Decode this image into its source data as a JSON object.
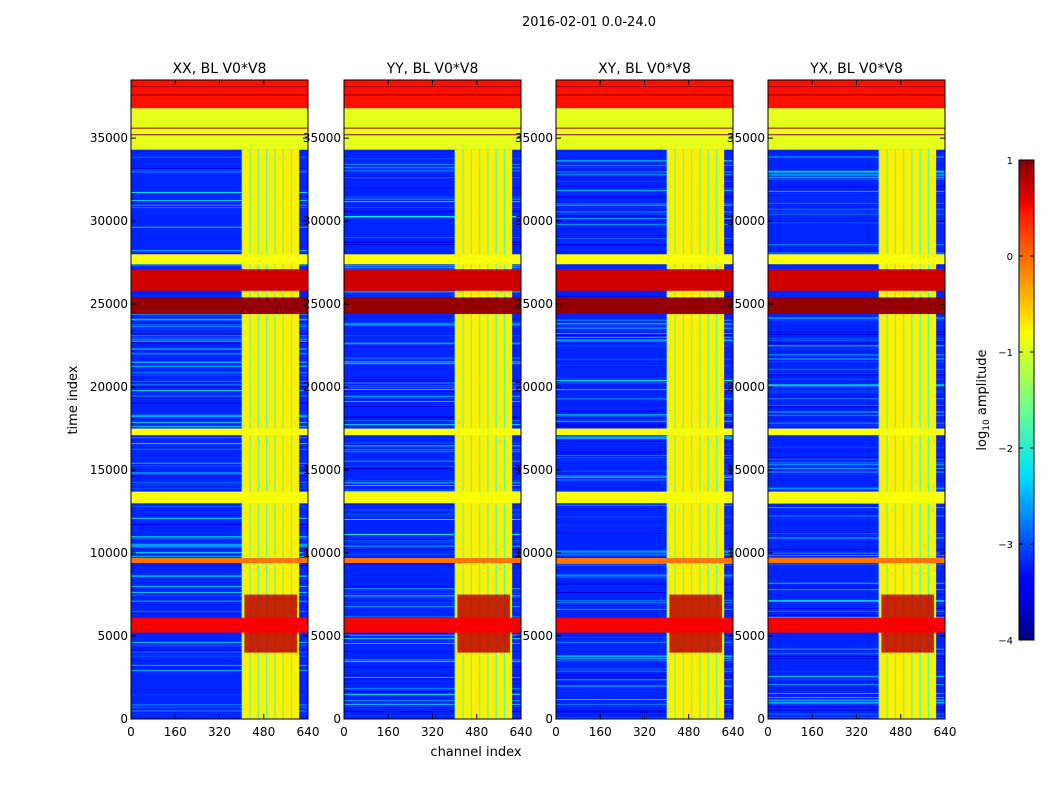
{
  "figure_title": "2016-02-01 0.0-24.0",
  "xlabel": "channel index",
  "ylabel": "time index",
  "colorbar": {
    "label_prefix": "log",
    "label_subscript": "10",
    "label_suffix": " amplitude",
    "ticks": [
      1,
      0,
      -1,
      -2,
      -3,
      -4
    ],
    "tick_labels": [
      "1",
      "0",
      "−1",
      "−2",
      "−3",
      "−4"
    ],
    "range": [
      -4,
      1
    ],
    "colormap": "jet"
  },
  "chart_data": [
    {
      "type": "heatmap",
      "title": "XX, BL V0*V8",
      "xlim": [
        0,
        640
      ],
      "ylim": [
        0,
        38500
      ],
      "xticks": [
        0,
        160,
        320,
        480,
        640
      ],
      "yticks": [
        0,
        5000,
        10000,
        15000,
        20000,
        25000,
        30000,
        35000
      ],
      "signal_band_channels": [
        400,
        600
      ]
    },
    {
      "type": "heatmap",
      "title": "YY, BL V0*V8",
      "xlim": [
        0,
        640
      ],
      "ylim": [
        0,
        38500
      ],
      "xticks": [
        0,
        160,
        320,
        480,
        640
      ],
      "yticks": [
        0,
        5000,
        10000,
        15000,
        20000,
        25000,
        30000,
        35000
      ],
      "signal_band_channels": [
        400,
        600
      ]
    },
    {
      "type": "heatmap",
      "title": "XY, BL V0*V8",
      "xlim": [
        0,
        640
      ],
      "ylim": [
        0,
        38500
      ],
      "xticks": [
        0,
        160,
        320,
        480,
        640
      ],
      "yticks": [
        0,
        5000,
        10000,
        15000,
        20000,
        25000,
        30000,
        35000
      ],
      "signal_band_channels": [
        400,
        600
      ]
    },
    {
      "type": "heatmap",
      "title": "YX, BL V0*V8",
      "xlim": [
        0,
        640
      ],
      "ylim": [
        0,
        38500
      ],
      "xticks": [
        0,
        160,
        320,
        480,
        640
      ],
      "yticks": [
        0,
        5000,
        10000,
        15000,
        20000,
        25000,
        30000,
        35000
      ],
      "signal_band_channels": [
        400,
        600
      ]
    }
  ],
  "flag_bands": [
    {
      "t0": 36800,
      "t1": 38500,
      "value": 0.3
    },
    {
      "t0": 34300,
      "t1": 36800,
      "value": -1.0
    },
    {
      "t0": 27400,
      "t1": 28000,
      "value": -0.9
    },
    {
      "t0": 25800,
      "t1": 27100,
      "value": 0.6
    },
    {
      "t0": 24400,
      "t1": 25400,
      "value": 0.9
    },
    {
      "t0": 17100,
      "t1": 17500,
      "value": -0.9
    },
    {
      "t0": 13000,
      "t1": 13700,
      "value": -0.9
    },
    {
      "t0": 9400,
      "t1": 9700,
      "value": -0.2
    },
    {
      "t0": 5200,
      "t1": 6100,
      "value": 0.4
    }
  ],
  "signal_channels": [
    410,
    440,
    470,
    500,
    530,
    560,
    590
  ],
  "hot_region": {
    "t0": 4000,
    "t1": 7500,
    "value": 0.7
  }
}
